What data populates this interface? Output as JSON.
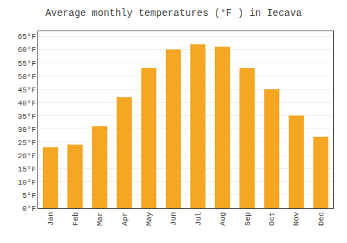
{
  "chart_data": {
    "type": "bar",
    "title": "Average monthly temperatures (°F ) in Iecava",
    "categories": [
      "Jan",
      "Feb",
      "Mar",
      "Apr",
      "May",
      "Jun",
      "Jul",
      "Aug",
      "Sep",
      "Oct",
      "Nov",
      "Dec"
    ],
    "values": [
      23,
      24,
      31,
      42,
      53,
      60,
      62,
      61,
      53,
      45,
      35,
      27
    ],
    "color": "#F5A623",
    "ylim": [
      0,
      67
    ],
    "yticks": [
      {
        "value": 0,
        "label": "0°F"
      },
      {
        "value": 5,
        "label": "5°F"
      },
      {
        "value": 10,
        "label": "10°F"
      },
      {
        "value": 15,
        "label": "15°F"
      },
      {
        "value": 20,
        "label": "20°F"
      },
      {
        "value": 25,
        "label": "25°F"
      },
      {
        "value": 30,
        "label": "30°F"
      },
      {
        "value": 35,
        "label": "35°F"
      },
      {
        "value": 40,
        "label": "40°F"
      },
      {
        "value": 45,
        "label": "45°F"
      },
      {
        "value": 50,
        "label": "50°F"
      },
      {
        "value": 55,
        "label": "55°F"
      },
      {
        "value": 60,
        "label": "60°F"
      },
      {
        "value": 65,
        "label": "65°F"
      }
    ],
    "grid": true
  }
}
